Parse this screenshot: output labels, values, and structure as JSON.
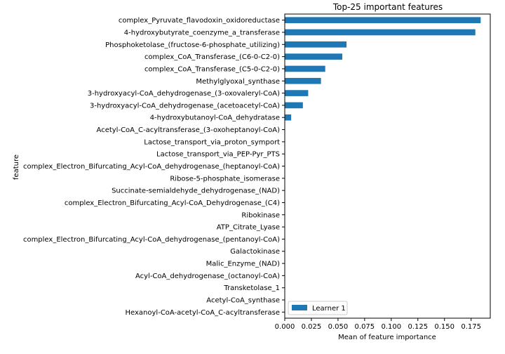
{
  "chart_data": {
    "type": "bar",
    "orientation": "horizontal",
    "title": "Top-25 important features",
    "xlabel": "Mean of feature importance",
    "ylabel": "feature",
    "xlim": [
      0.0,
      0.193
    ],
    "xticks": [
      0.0,
      0.025,
      0.05,
      0.075,
      0.1,
      0.125,
      0.15,
      0.175
    ],
    "xtick_labels": [
      "0.000",
      "0.025",
      "0.050",
      "0.075",
      "0.100",
      "0.125",
      "0.150",
      "0.175"
    ],
    "grid": false,
    "legend_position": "lower-left",
    "color": "#1f77b4",
    "categories": [
      "complex_Pyruvate_flavodoxin_oxidoreductase",
      "4-hydroxybutyrate_coenzyme_a_transferase",
      "Phosphoketolase_(fructose-6-phosphate_utilizing)",
      "complex_CoA_Transferase_(C6-0-C2-0)",
      "complex_CoA_Transferase_(C5-0-C2-0)",
      "Methylglyoxal_synthase",
      "3-hydroxyacyl-CoA_dehydrogenase_(3-oxovaleryl-CoA)",
      "3-hydroxyacyl-CoA_dehydrogenase_(acetoacetyl-CoA)",
      "4-hydroxybutanoyl-CoA_dehydratase",
      "Acetyl-CoA_C-acyltransferase_(3-oxoheptanoyl-CoA)",
      "Lactose_transport_via_proton_symport",
      "Lactose_transport_via_PEP-Pyr_PTS",
      "complex_Electron_Bifurcating_Acyl-CoA_dehydrogenase_(heptanoyl-CoA)",
      "Ribose-5-phosphate_isomerase",
      "Succinate-semialdehyde_dehydrogenase_(NAD)",
      "complex_Electron_Bifurcating_Acyl-CoA_Dehydrogenase_(C4)",
      "Ribokinase",
      "ATP_Citrate_Lyase",
      "complex_Electron_Bifurcating_Acyl-CoA_dehydrogenase_(pentanoyl-CoA)",
      "Galactokinase",
      "Malic_Enzyme_(NAD)",
      "Acyl-CoA_dehydrogenase_(octanoyl-CoA)",
      "Transketolase_1",
      "Acetyl-CoA_synthase",
      "Hexanoyl-CoA-acetyl-CoA_C-acyltransferase"
    ],
    "series": [
      {
        "name": "Learner 1",
        "values": [
          0.184,
          0.179,
          0.058,
          0.054,
          0.038,
          0.034,
          0.022,
          0.017,
          0.006,
          0.0003,
          0.0002,
          0.0002,
          0.0002,
          0.0001,
          0.0001,
          0.0001,
          0.0001,
          0.0001,
          0.0001,
          0.0001,
          0.0001,
          0.0001,
          0.0001,
          0.0001,
          0.0001
        ]
      }
    ]
  }
}
